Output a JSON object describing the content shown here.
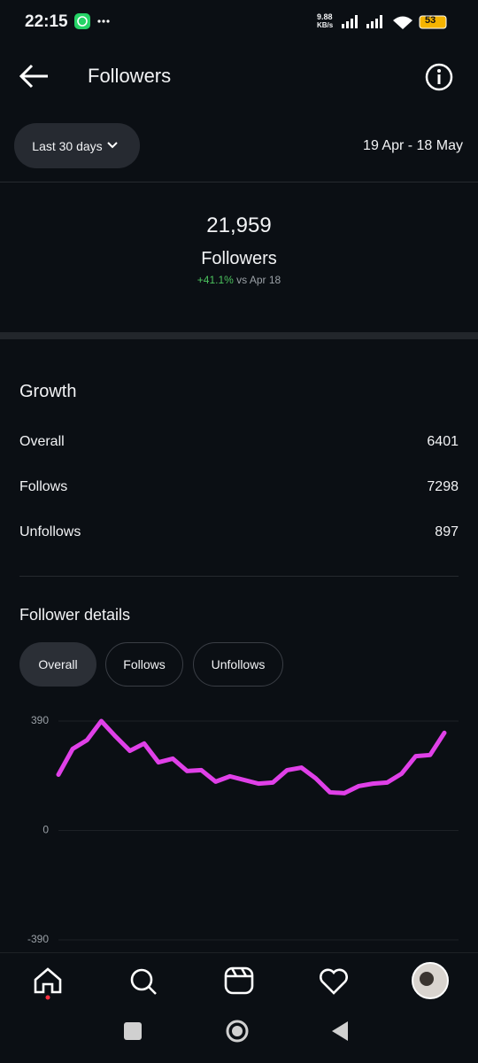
{
  "status_bar": {
    "time": "22:15",
    "speed": "9.88",
    "speed_unit": "KB/s",
    "battery": "53"
  },
  "header": {
    "title": "Followers"
  },
  "filter": {
    "range": "Last 30 days",
    "dates": "19 Apr - 18 May"
  },
  "summary": {
    "count": "21,959",
    "label": "Followers",
    "change": "+41.1%",
    "compare": "vs Apr 18"
  },
  "growth": {
    "title": "Growth",
    "rows": [
      [
        "Overall",
        "6401"
      ],
      [
        "Follows",
        "7298"
      ],
      [
        "Unfollows",
        "897"
      ]
    ]
  },
  "details": {
    "title": "Follower details",
    "tabs": [
      "Overall",
      "Follows",
      "Unfollows"
    ]
  },
  "chart_data": {
    "type": "line",
    "color": "#e040e8",
    "ylim": [
      -390,
      390
    ],
    "yticks": [
      390,
      0,
      -390
    ],
    "grid": true,
    "values": [
      199,
      291,
      322,
      390,
      335,
      284,
      310,
      243,
      256,
      212,
      215,
      174,
      193,
      180,
      167,
      171,
      215,
      224,
      186,
      136,
      133,
      158,
      167,
      171,
      202,
      265,
      269,
      348
    ]
  }
}
